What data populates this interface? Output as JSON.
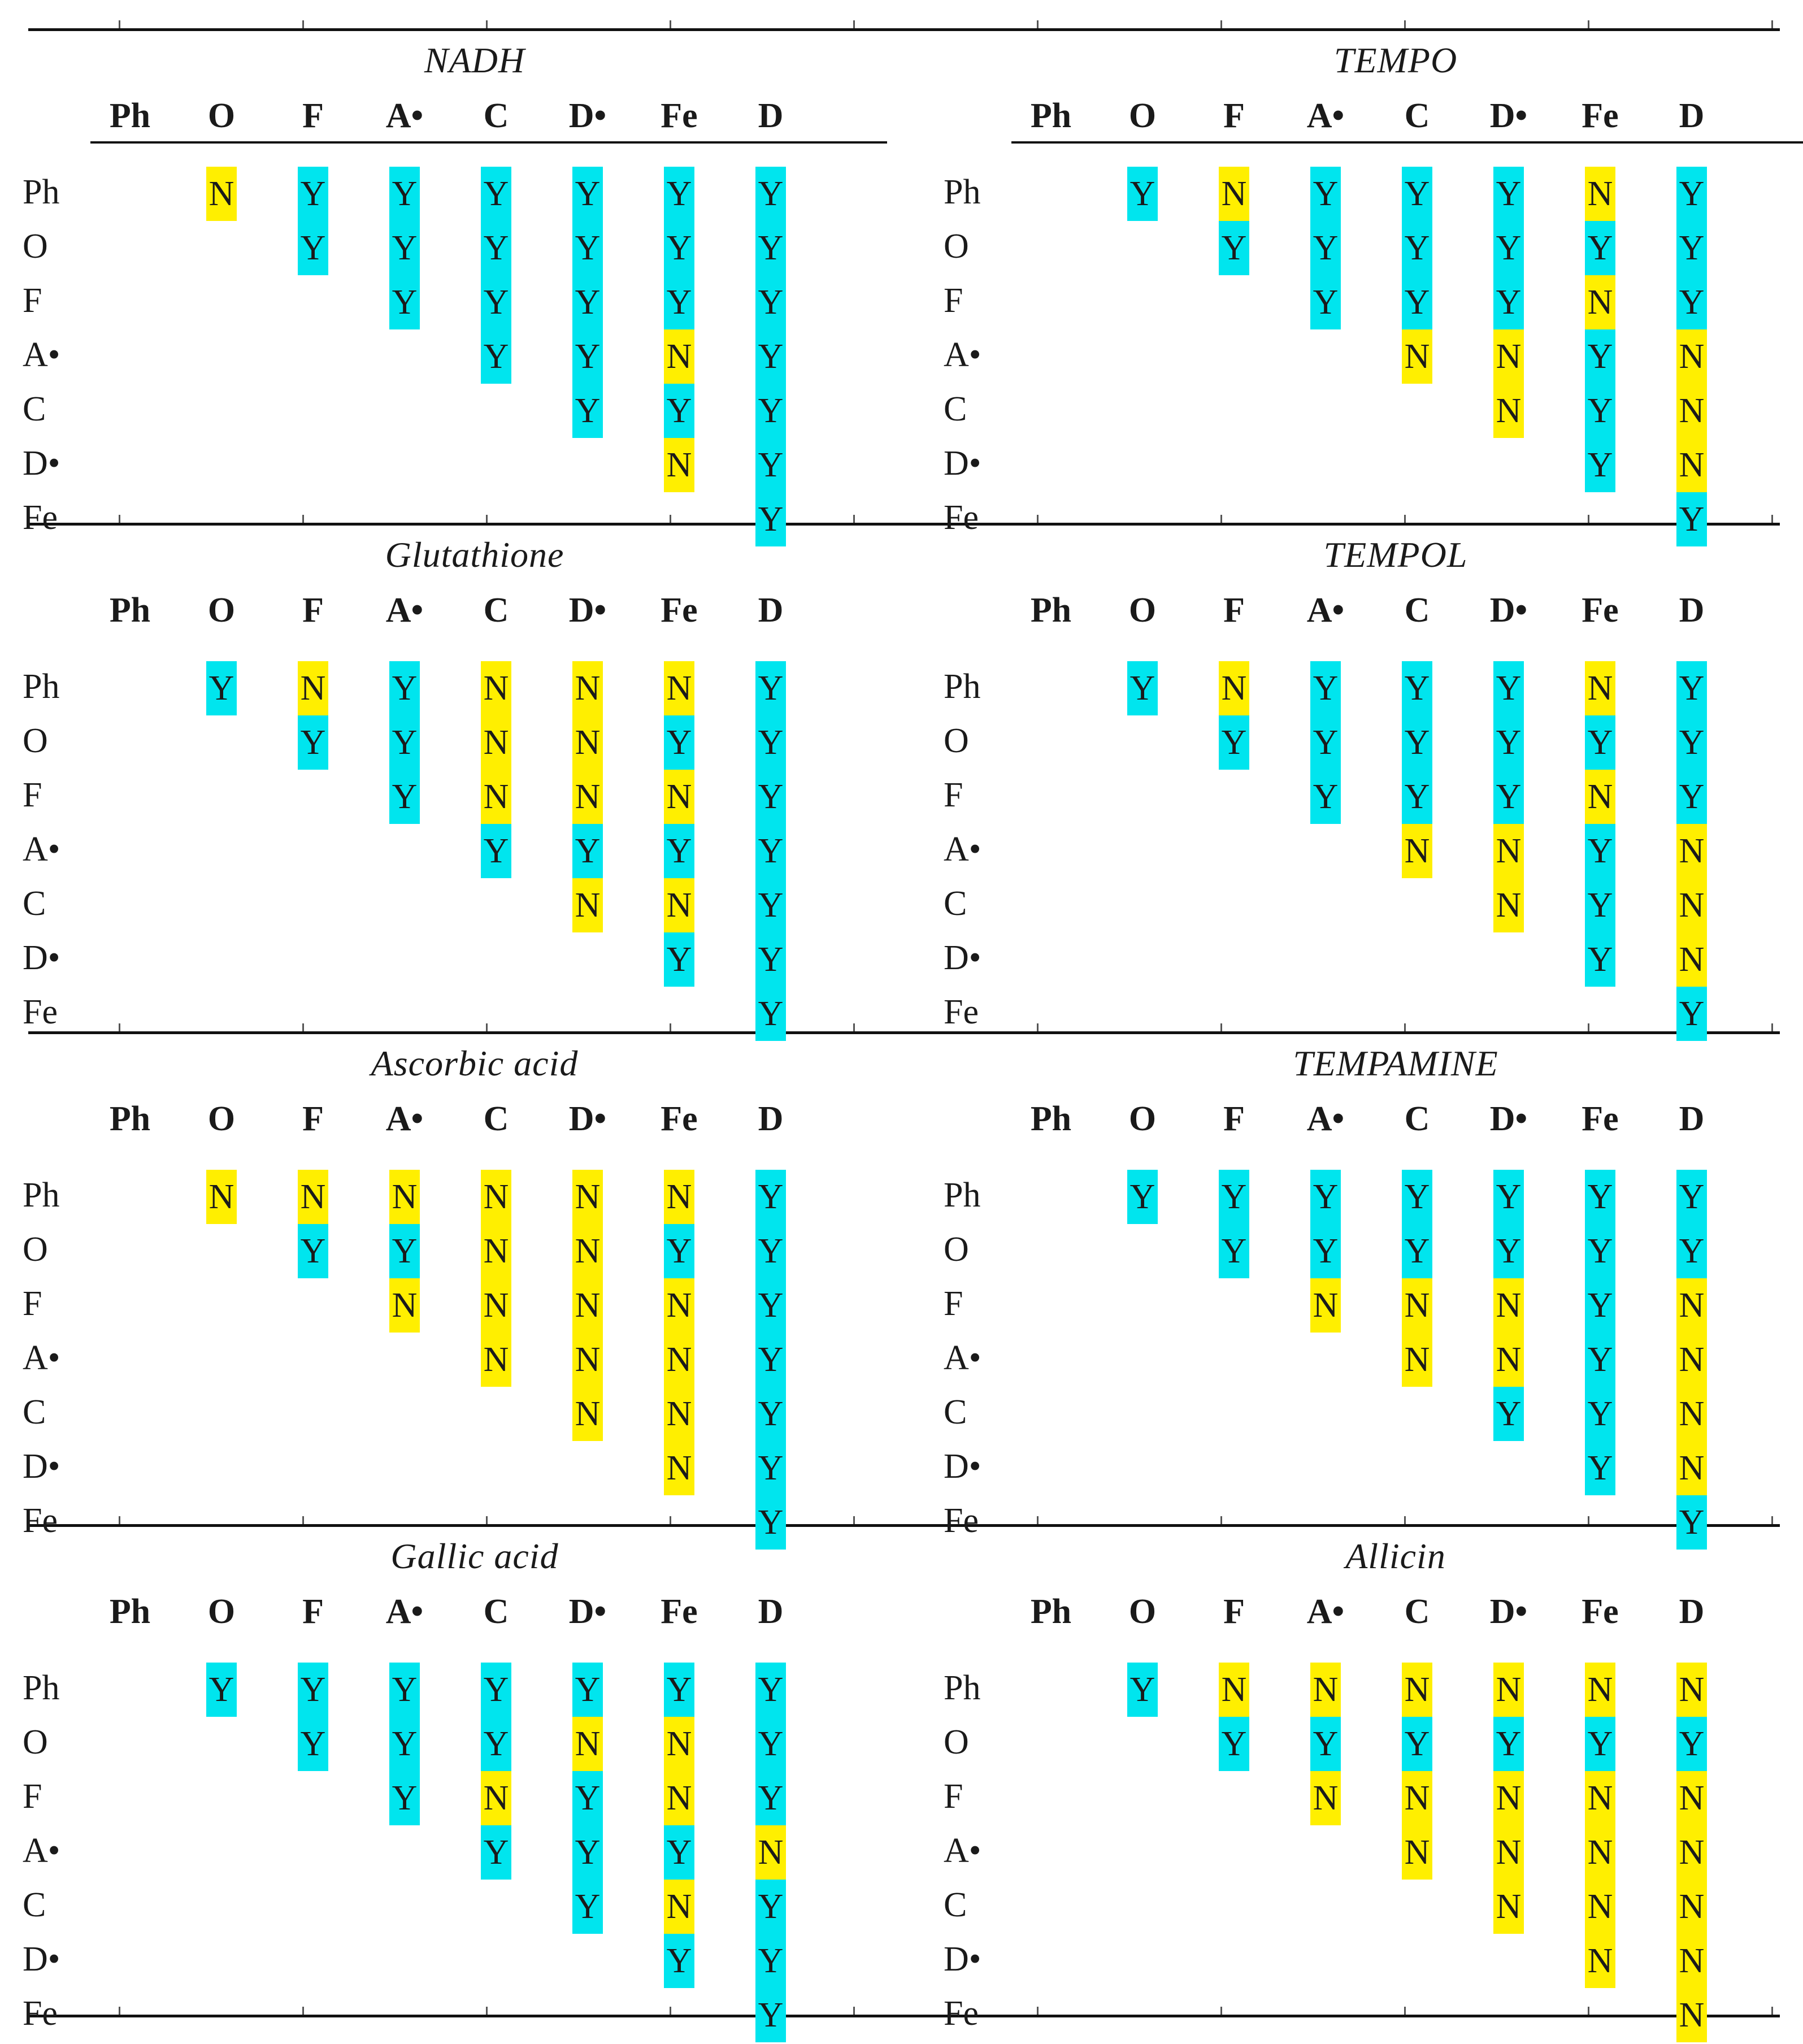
{
  "columns": [
    "Ph",
    "O",
    "F",
    "A•",
    "C",
    "D•",
    "Fe",
    "D"
  ],
  "rows": [
    "Ph",
    "O",
    "F",
    "A•",
    "C",
    "D•",
    "Fe"
  ],
  "colors": {
    "Y": "#00e5ee",
    "N": "#ffef00"
  },
  "panels": [
    {
      "title": "NADH",
      "matrix": [
        [
          "N",
          "Y",
          "Y",
          "Y",
          "Y",
          "Y",
          "Y"
        ],
        [
          "Y",
          "Y",
          "Y",
          "Y",
          "Y",
          "Y"
        ],
        [
          "Y",
          "Y",
          "Y",
          "Y",
          "Y"
        ],
        [
          "Y",
          "Y",
          "N",
          "Y"
        ],
        [
          "Y",
          "Y",
          "Y"
        ],
        [
          "N",
          "Y"
        ],
        [
          "Y"
        ]
      ]
    },
    {
      "title": "TEMPO",
      "matrix": [
        [
          "Y",
          "N",
          "Y",
          "Y",
          "Y",
          "N",
          "Y"
        ],
        [
          "Y",
          "Y",
          "Y",
          "Y",
          "Y",
          "Y"
        ],
        [
          "Y",
          "Y",
          "Y",
          "N",
          "Y"
        ],
        [
          "N",
          "N",
          "Y",
          "N"
        ],
        [
          "N",
          "Y",
          "N"
        ],
        [
          "Y",
          "N"
        ],
        [
          "Y"
        ]
      ]
    },
    {
      "title": "Glutathione",
      "matrix": [
        [
          "Y",
          "N",
          "Y",
          "N",
          "N",
          "N",
          "Y"
        ],
        [
          "Y",
          "Y",
          "N",
          "N",
          "Y",
          "Y"
        ],
        [
          "Y",
          "N",
          "N",
          "N",
          "Y"
        ],
        [
          "Y",
          "Y",
          "Y",
          "Y"
        ],
        [
          "N",
          "N",
          "Y"
        ],
        [
          "Y",
          "Y"
        ],
        [
          "Y"
        ]
      ]
    },
    {
      "title": "TEMPOL",
      "matrix": [
        [
          "Y",
          "N",
          "Y",
          "Y",
          "Y",
          "N",
          "Y"
        ],
        [
          "Y",
          "Y",
          "Y",
          "Y",
          "Y",
          "Y"
        ],
        [
          "Y",
          "Y",
          "Y",
          "N",
          "Y"
        ],
        [
          "N",
          "N",
          "Y",
          "N"
        ],
        [
          "N",
          "Y",
          "N"
        ],
        [
          "Y",
          "N"
        ],
        [
          "Y"
        ]
      ]
    },
    {
      "title": "Ascorbic acid",
      "matrix": [
        [
          "N",
          "N",
          "N",
          "N",
          "N",
          "N",
          "Y"
        ],
        [
          "Y",
          "Y",
          "N",
          "N",
          "Y",
          "Y"
        ],
        [
          "N",
          "N",
          "N",
          "N",
          "Y"
        ],
        [
          "N",
          "N",
          "N",
          "Y"
        ],
        [
          "N",
          "N",
          "Y"
        ],
        [
          "N",
          "Y"
        ],
        [
          "Y"
        ]
      ]
    },
    {
      "title": "TEMPAMINE",
      "matrix": [
        [
          "Y",
          "Y",
          "Y",
          "Y",
          "Y",
          "Y",
          "Y"
        ],
        [
          "Y",
          "Y",
          "Y",
          "Y",
          "Y",
          "Y"
        ],
        [
          "N",
          "N",
          "N",
          "Y",
          "N"
        ],
        [
          "N",
          "N",
          "Y",
          "N"
        ],
        [
          "Y",
          "Y",
          "N"
        ],
        [
          "Y",
          "N"
        ],
        [
          "Y"
        ]
      ]
    },
    {
      "title": "Gallic acid",
      "matrix": [
        [
          "Y",
          "Y",
          "Y",
          "Y",
          "Y",
          "Y",
          "Y"
        ],
        [
          "Y",
          "Y",
          "Y",
          "N",
          "N",
          "Y"
        ],
        [
          "Y",
          "N",
          "Y",
          "N",
          "Y"
        ],
        [
          "Y",
          "Y",
          "Y",
          "N"
        ],
        [
          "Y",
          "N",
          "Y"
        ],
        [
          "Y",
          "Y"
        ],
        [
          "Y"
        ]
      ]
    },
    {
      "title": "Allicin",
      "matrix": [
        [
          "Y",
          "N",
          "N",
          "N",
          "N",
          "N",
          "N"
        ],
        [
          "Y",
          "Y",
          "Y",
          "Y",
          "Y",
          "Y"
        ],
        [
          "N",
          "N",
          "N",
          "N",
          "N"
        ],
        [
          "N",
          "N",
          "N",
          "N"
        ],
        [
          "N",
          "N",
          "N"
        ],
        [
          "N",
          "N"
        ],
        [
          "N"
        ]
      ]
    }
  ]
}
